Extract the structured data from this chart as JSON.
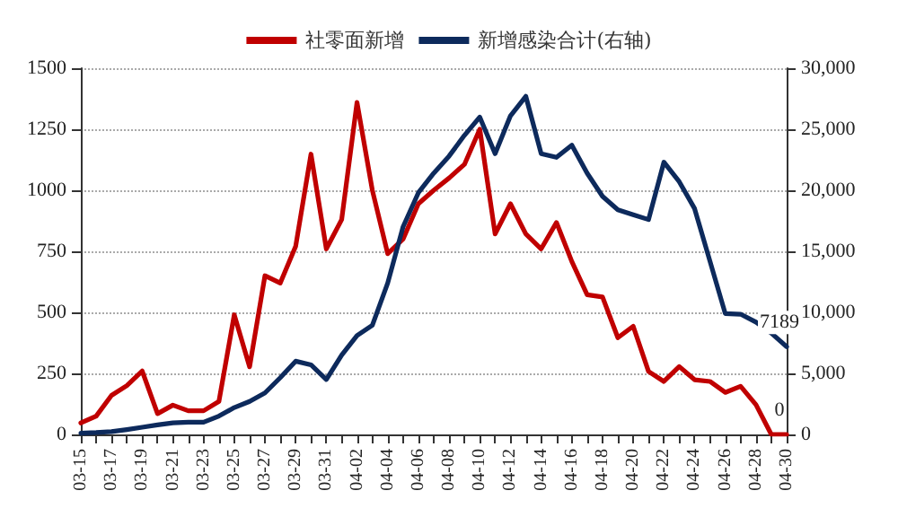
{
  "chart_data": {
    "type": "line",
    "categories": [
      "03-15",
      null,
      "03-17",
      null,
      "03-19",
      null,
      "03-21",
      null,
      "03-23",
      null,
      "03-25",
      null,
      "03-27",
      null,
      "03-29",
      null,
      "03-31",
      null,
      "04-02",
      null,
      "04-04",
      null,
      "04-06",
      null,
      "04-08",
      null,
      "04-10",
      null,
      "04-12",
      null,
      "04-14",
      null,
      "04-16",
      null,
      "04-18",
      null,
      "04-20",
      null,
      "04-22",
      null,
      "04-24",
      null,
      "04-26",
      null,
      "04-28",
      null,
      "04-30"
    ],
    "series": [
      {
        "name": "社零面新增",
        "color": "#c00000",
        "values": [
          47,
          75,
          160,
          200,
          260,
          85,
          120,
          97,
          97,
          135,
          490,
          277,
          650,
          620,
          770,
          1148,
          760,
          880,
          1360,
          1000,
          740,
          800,
          945,
          1000,
          1050,
          1106,
          1250,
          821,
          945,
          821,
          760,
          868,
          708,
          572,
          563,
          396,
          443,
          258,
          217,
          278,
          224,
          217,
          172,
          197,
          122,
          0,
          0
        ],
        "value_labels": [
          null,
          null,
          null,
          null,
          null,
          null,
          null,
          null,
          null,
          null,
          null,
          null,
          null,
          null,
          null,
          null,
          null,
          null,
          null,
          null,
          null,
          null,
          null,
          null,
          null,
          null,
          null,
          null,
          null,
          null,
          null,
          null,
          null,
          null,
          null,
          null,
          null,
          null,
          null,
          null,
          null,
          null,
          null,
          null,
          null,
          null,
          "0"
        ]
      },
      {
        "name": "新增感染合计(右轴)",
        "color": "#0d2a5c",
        "axis": "y2",
        "values": [
          100,
          150,
          230,
          400,
          590,
          780,
          950,
          1000,
          1000,
          1500,
          2200,
          2700,
          3400,
          4650,
          6000,
          5700,
          4500,
          6500,
          8100,
          8950,
          12400,
          17000,
          19800,
          21400,
          22800,
          24500,
          26000,
          23000,
          26100,
          27700,
          23000,
          22700,
          23700,
          21400,
          19500,
          18400,
          18000,
          17600,
          22300,
          20700,
          18500,
          14200,
          9900,
          9850,
          9200,
          8300,
          7189
        ],
        "value_labels": [
          null,
          null,
          null,
          null,
          null,
          null,
          null,
          null,
          null,
          null,
          null,
          null,
          null,
          null,
          null,
          null,
          null,
          null,
          null,
          null,
          null,
          null,
          null,
          null,
          null,
          null,
          null,
          null,
          null,
          null,
          null,
          null,
          null,
          null,
          null,
          null,
          null,
          null,
          null,
          null,
          null,
          null,
          null,
          null,
          null,
          null,
          "7189"
        ]
      }
    ],
    "ylim": [
      0,
      1500
    ],
    "yticks": [
      0,
      250,
      500,
      750,
      1000,
      1250,
      1500
    ],
    "y2lim": [
      0,
      30000
    ],
    "y2ticks": [
      0,
      {
        "value": 5000,
        "label": "5,000"
      },
      {
        "value": 10000,
        "label": "10,000"
      },
      {
        "value": 15000,
        "label": "15,000"
      },
      {
        "value": 20000,
        "label": "20,000"
      },
      {
        "value": 25000,
        "label": "25,000"
      },
      {
        "value": 30000,
        "label": "30,000"
      }
    ],
    "grid": "y",
    "legend": "top",
    "marker": "none",
    "line_style": "solid"
  }
}
